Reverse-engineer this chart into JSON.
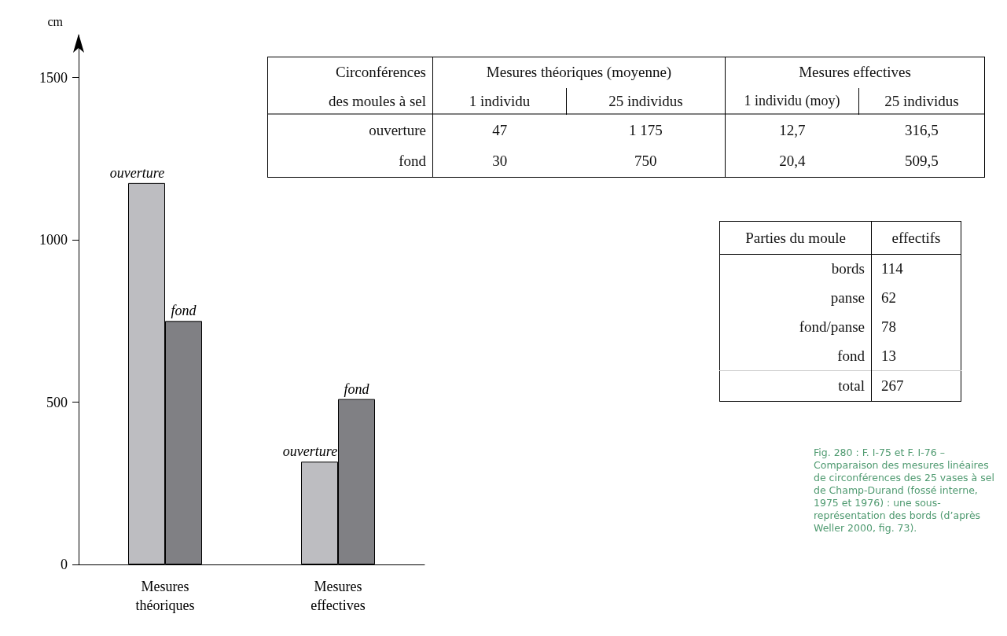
{
  "chart_data": {
    "type": "bar",
    "ylabel": "cm",
    "categories": [
      "Mesures\nthéoriques",
      "Mesures\neffectives"
    ],
    "series": [
      {
        "name": "ouverture",
        "color": "#bdbdc1",
        "values": [
          1175,
          316.5
        ]
      },
      {
        "name": "fond",
        "color": "#808084",
        "values": [
          750,
          509.5
        ]
      }
    ],
    "ylim": [
      0,
      1630
    ],
    "yticks": [
      0,
      500,
      1000,
      1500
    ],
    "grid": false,
    "legend": false,
    "annotations": [
      "Circonférences",
      "Mesures théoriques (moyenne)",
      "Mesures effectives",
      "des moules à sel",
      "1 individu",
      "25 individus",
      "1 individu (moy)",
      "25 individus",
      "ouverture",
      "47",
      "1 175",
      "12,7",
      "316,5",
      "fond",
      "30",
      "750",
      "20,4",
      "509,5",
      "Parties du moule",
      "effectifs",
      "bords",
      "114",
      "panse",
      "62",
      "fond/panse",
      "78",
      "fond",
      "13",
      "total",
      "267",
      "Fig. 280 : F. I-75 et F. I-76 – Comparaison des mesures linéaires de circonférences des 25 vases à sel de Champ-Durand (fossé interne, 1975 et 1976) : une sous-représentation des bords (d’après Weller 2000, fig. 73)."
    ]
  }
}
